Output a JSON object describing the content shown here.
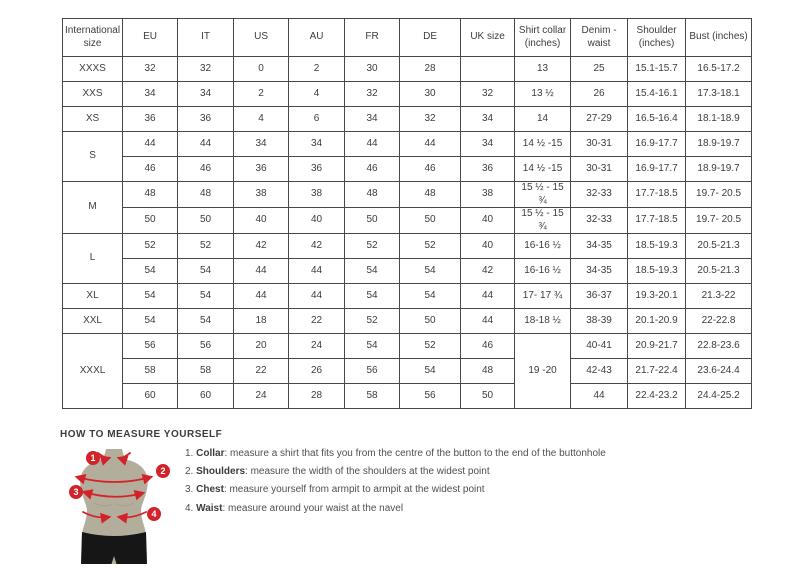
{
  "colors": {
    "accent": "#d2232a",
    "table_border": "#47474a",
    "text": "#3c3c3c",
    "torso_fill": "#b3ae9b",
    "shorts_fill": "#161616"
  },
  "table": {
    "headers": [
      "International size",
      "EU",
      "IT",
      "US",
      "AU",
      "FR",
      "DE",
      "UK size",
      "Shirt collar (inches)",
      "Denim - waist",
      "Shoulder (inches)",
      "Bust (inches)"
    ],
    "col_keys": [
      "eu",
      "it",
      "us",
      "au",
      "fr",
      "de",
      "uk",
      "collar",
      "denim",
      "shoulder",
      "bust"
    ],
    "rows": [
      {
        "size": "XXXS",
        "size_span": 1,
        "eu": "32",
        "it": "32",
        "us": "0",
        "au": "2",
        "fr": "30",
        "de": "28",
        "uk": "",
        "collar": "13",
        "collar_span": 1,
        "denim": "25",
        "shoulder": "15.1-15.7",
        "bust": "16.5-17.2"
      },
      {
        "size": "XXS",
        "size_span": 1,
        "eu": "34",
        "it": "34",
        "us": "2",
        "au": "4",
        "fr": "32",
        "de": "30",
        "uk": "32",
        "collar": "13 ½",
        "collar_span": 1,
        "denim": "26",
        "shoulder": "15.4-16.1",
        "bust": "17.3-18.1"
      },
      {
        "size": "XS",
        "size_span": 1,
        "eu": "36",
        "it": "36",
        "us": "4",
        "au": "6",
        "fr": "34",
        "de": "32",
        "uk": "34",
        "collar": "14",
        "collar_span": 1,
        "denim": "27-29",
        "shoulder": "16.5-16.4",
        "bust": "18.1-18.9"
      },
      {
        "size": "S",
        "size_span": 2,
        "eu": "44",
        "it": "44",
        "us": "34",
        "au": "34",
        "fr": "44",
        "de": "44",
        "uk": "34",
        "collar": "14 ½ -15",
        "collar_span": 1,
        "denim": "30-31",
        "shoulder": "16.9-17.7",
        "bust": "18.9-19.7"
      },
      {
        "size": null,
        "eu": "46",
        "it": "46",
        "us": "36",
        "au": "36",
        "fr": "46",
        "de": "46",
        "uk": "36",
        "collar": "14 ½ -15",
        "collar_span": 1,
        "denim": "30-31",
        "shoulder": "16.9-17.7",
        "bust": "18.9-19.7"
      },
      {
        "size": "M",
        "size_span": 2,
        "eu": "48",
        "it": "48",
        "us": "38",
        "au": "38",
        "fr": "48",
        "de": "48",
        "uk": "38",
        "collar": "15 ½ - 15 ¾",
        "collar_span": 1,
        "denim": "32-33",
        "shoulder": "17.7-18.5",
        "bust": "19.7- 20.5"
      },
      {
        "size": null,
        "eu": "50",
        "it": "50",
        "us": "40",
        "au": "40",
        "fr": "50",
        "de": "50",
        "uk": "40",
        "collar": "15 ½ - 15 ¾",
        "collar_span": 1,
        "denim": "32-33",
        "shoulder": "17.7-18.5",
        "bust": "19.7- 20.5"
      },
      {
        "size": "L",
        "size_span": 2,
        "eu": "52",
        "it": "52",
        "us": "42",
        "au": "42",
        "fr": "52",
        "de": "52",
        "uk": "40",
        "collar": "16-16 ½",
        "collar_span": 1,
        "denim": "34-35",
        "shoulder": "18.5-19.3",
        "bust": "20.5-21.3"
      },
      {
        "size": null,
        "eu": "54",
        "it": "54",
        "us": "44",
        "au": "44",
        "fr": "54",
        "de": "54",
        "uk": "42",
        "collar": "16-16 ½",
        "collar_span": 1,
        "denim": "34-35",
        "shoulder": "18.5-19.3",
        "bust": "20.5-21.3"
      },
      {
        "size": "XL",
        "size_span": 1,
        "eu": "54",
        "it": "54",
        "us": "44",
        "au": "44",
        "fr": "54",
        "de": "54",
        "uk": "44",
        "collar": "17- 17 ¾",
        "collar_span": 1,
        "denim": "36-37",
        "shoulder": "19.3-20.1",
        "bust": "21.3-22"
      },
      {
        "size": "XXL",
        "size_span": 1,
        "eu": "54",
        "it": "54",
        "us": "18",
        "au": "22",
        "fr": "52",
        "de": "50",
        "uk": "44",
        "collar": "18-18 ½",
        "collar_span": 1,
        "denim": "38-39",
        "shoulder": "20.1-20.9",
        "bust": "22-22.8"
      },
      {
        "size": "XXXL",
        "size_span": 3,
        "eu": "56",
        "it": "56",
        "us": "20",
        "au": "24",
        "fr": "54",
        "de": "52",
        "uk": "46",
        "collar": "19 -20",
        "collar_span": 3,
        "denim": "40-41",
        "shoulder": "20.9-21.7",
        "bust": "22.8-23.6"
      },
      {
        "size": null,
        "eu": "58",
        "it": "58",
        "us": "22",
        "au": "26",
        "fr": "56",
        "de": "54",
        "uk": "48",
        "collar": null,
        "denim": "42-43",
        "shoulder": "21.7-22.4",
        "bust": "23.6-24.4"
      },
      {
        "size": null,
        "eu": "60",
        "it": "60",
        "us": "24",
        "au": "28",
        "fr": "58",
        "de": "56",
        "uk": "50",
        "collar": null,
        "denim": "44",
        "shoulder": "22.4-23.2",
        "bust": "24.4-25.2"
      }
    ]
  },
  "measure": {
    "heading": "HOW TO MEASURE YOURSELF",
    "badges": [
      "1",
      "2",
      "3",
      "4"
    ],
    "steps": [
      {
        "num": "1.",
        "label": "Collar",
        "text": ": measure a shirt that fits you from the centre of the button to the end of the buttonhole"
      },
      {
        "num": "2.",
        "label": "Shoulders",
        "text": ": measure the width of the shoulders at the widest point"
      },
      {
        "num": "3.",
        "label": "Chest",
        "text": ": measure yourself from armpit to armpit at the widest point"
      },
      {
        "num": "4.",
        "label": "Waist",
        "text": ": measure around your waist at the navel"
      }
    ]
  }
}
